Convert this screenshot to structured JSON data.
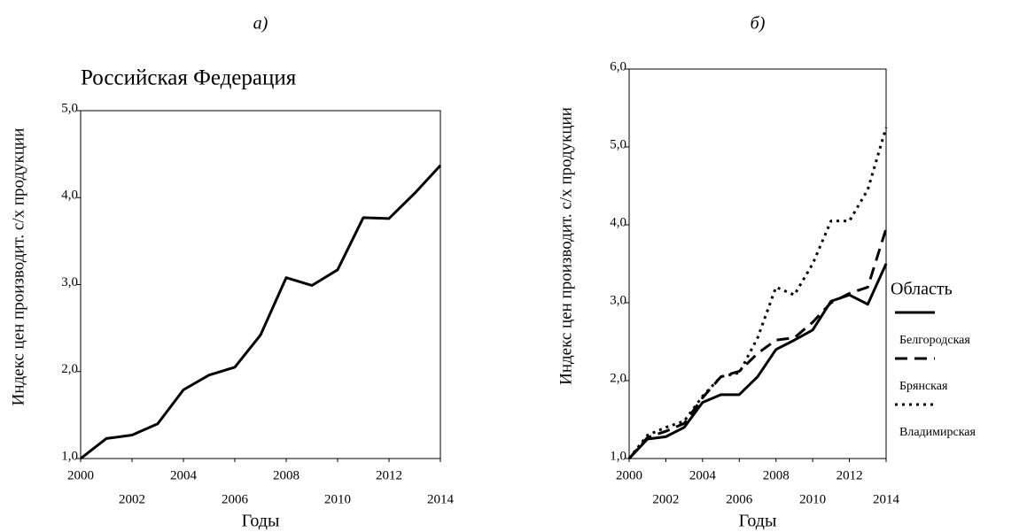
{
  "chart_data": [
    {
      "type": "line",
      "panel_label": "а)",
      "title": "Российская Федерация",
      "xlabel": "Годы",
      "ylabel": "Индекс цен производит. с/х продукции",
      "x": [
        2000,
        2001,
        2002,
        2003,
        2004,
        2005,
        2006,
        2007,
        2008,
        2009,
        2010,
        2011,
        2012,
        2013,
        2014
      ],
      "series": [
        {
          "name": null,
          "color": "#000000",
          "style": "solid",
          "values": [
            1.0,
            1.23,
            1.27,
            1.4,
            1.79,
            1.96,
            2.05,
            2.42,
            3.08,
            2.99,
            3.17,
            3.77,
            3.76,
            4.05,
            4.37
          ]
        }
      ],
      "xlim": [
        2000,
        2014
      ],
      "xticks": [
        2000,
        2002,
        2004,
        2006,
        2008,
        2010,
        2012,
        2014
      ],
      "ylim": [
        1,
        5
      ],
      "yticks": [
        {
          "value": 1,
          "label": "1,0"
        },
        {
          "value": 2,
          "label": "2,0"
        },
        {
          "value": 3,
          "label": "3,0"
        },
        {
          "value": 4,
          "label": "4,0"
        },
        {
          "value": 5,
          "label": "5,0"
        }
      ]
    },
    {
      "type": "line",
      "panel_label": "б)",
      "xlabel": "Годы",
      "ylabel": "Индекс цен производит. с/х продукции",
      "legend_title": "Область",
      "x": [
        2000,
        2001,
        2002,
        2003,
        2004,
        2005,
        2006,
        2007,
        2008,
        2009,
        2010,
        2011,
        2012,
        2013,
        2014
      ],
      "series": [
        {
          "name": "Белгородская",
          "color": "#000000",
          "style": "solid",
          "values": [
            1.0,
            1.25,
            1.28,
            1.4,
            1.72,
            1.82,
            1.82,
            2.05,
            2.4,
            2.52,
            2.65,
            3.02,
            3.1,
            2.98,
            3.5
          ]
        },
        {
          "name": "Брянская",
          "color": "#000000",
          "style": "dashed",
          "values": [
            1.0,
            1.27,
            1.35,
            1.45,
            1.78,
            2.05,
            2.12,
            2.35,
            2.52,
            2.55,
            2.75,
            3.0,
            3.12,
            3.2,
            3.95
          ]
        },
        {
          "name": "Владимирская",
          "color": "#000000",
          "style": "dotted",
          "values": [
            1.0,
            1.3,
            1.4,
            1.48,
            1.8,
            2.05,
            2.1,
            2.55,
            3.2,
            3.1,
            3.5,
            4.05,
            4.05,
            4.45,
            5.25
          ]
        }
      ],
      "xlim": [
        2000,
        2014
      ],
      "xticks": [
        2000,
        2002,
        2004,
        2006,
        2008,
        2010,
        2012,
        2014
      ],
      "ylim": [
        1,
        6
      ],
      "yticks": [
        {
          "value": 1,
          "label": "1,0"
        },
        {
          "value": 2,
          "label": "2,0"
        },
        {
          "value": 3,
          "label": "3,0"
        },
        {
          "value": 4,
          "label": "4,0"
        },
        {
          "value": 5,
          "label": "5,0"
        },
        {
          "value": 6,
          "label": "6,0"
        }
      ]
    }
  ]
}
